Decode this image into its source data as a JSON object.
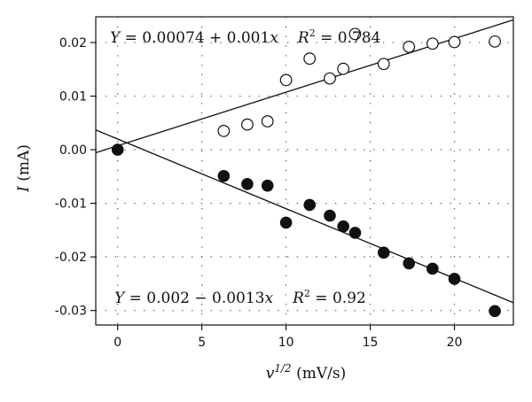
{
  "chart_data": {
    "type": "scatter",
    "title": "",
    "xlabel": "v^{1/2} (mV/s)",
    "xlabel_main": "v",
    "xlabel_sup": "1/2",
    "xlabel_unit": " (mV/s)",
    "ylabel": "I (mA)",
    "ylabel_main": "I",
    "ylabel_unit": " (mA)",
    "xlim": [
      -1.3,
      23.5
    ],
    "ylim": [
      -0.0327,
      0.0248
    ],
    "grid": true,
    "x_ticks": [
      0,
      5,
      10,
      15,
      20
    ],
    "x_tick_labels": [
      "0",
      "5",
      "10",
      "15",
      "20"
    ],
    "y_ticks": [
      0.02,
      0.01,
      0.0,
      -0.01,
      -0.02,
      -0.03
    ],
    "y_tick_labels": [
      "0.02",
      "0.01",
      "0.00",
      "-0.01",
      "-0.02",
      "-0.03"
    ],
    "series": [
      {
        "marker": "open-circle",
        "x": [
          0,
          6.3,
          7.7,
          8.9,
          10.0,
          11.4,
          12.6,
          13.4,
          14.1,
          15.8,
          17.3,
          18.7,
          20.0,
          22.4
        ],
        "y": [
          0.0,
          0.0035,
          0.0047,
          0.0053,
          0.013,
          0.017,
          0.0133,
          0.0151,
          0.0216,
          0.016,
          0.0192,
          0.0198,
          0.0201,
          0.0202
        ],
        "fit": {
          "intercept": 0.00074,
          "slope": 0.001
        },
        "annotation": {
          "eq_y": "Y",
          "eq_mid": " = 0.00074 + 0.001",
          "eq_x": "x",
          "r2_r": "R",
          "r2_sup": "2",
          "r2_val": " = 0.784"
        }
      },
      {
        "marker": "filled-circle",
        "x": [
          0,
          6.3,
          7.7,
          8.9,
          10.0,
          11.4,
          12.6,
          13.4,
          14.1,
          15.8,
          17.3,
          18.7,
          20.0,
          22.4
        ],
        "y": [
          0.0,
          -0.0049,
          -0.0064,
          -0.0067,
          -0.0136,
          -0.0103,
          -0.0123,
          -0.0143,
          -0.0155,
          -0.0192,
          -0.0212,
          -0.0222,
          -0.0241,
          -0.0301
        ],
        "fit": {
          "intercept": 0.002,
          "slope": -0.0013
        },
        "annotation": {
          "eq_y": "Y",
          "eq_mid": " = 0.002 − 0.0013",
          "eq_x": "x",
          "r2_r": "R",
          "r2_sup": "2",
          "r2_val": " = 0.92"
        }
      }
    ]
  }
}
